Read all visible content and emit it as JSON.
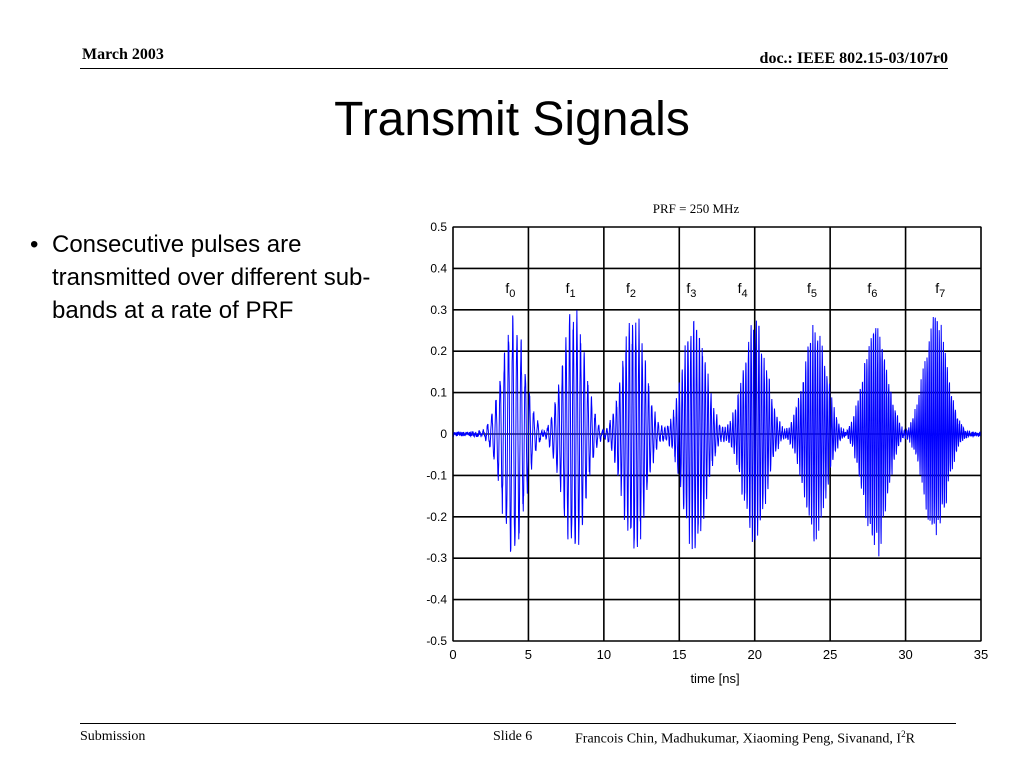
{
  "header": {
    "date": "March 2003",
    "doc_id": "doc.: IEEE 802.15-03/107r0"
  },
  "title": "Transmit Signals",
  "bullets": [
    "Consecutive pulses are transmitted over different sub-bands at a rate of PRF"
  ],
  "footer": {
    "left": "Submission",
    "slide": "Slide 6",
    "authors": "Francois Chin, Madhukumar, Xiaoming Peng, Sivanand, I",
    "authors_sup": "2",
    "authors_tail": "R"
  },
  "colors": {
    "signal": "#0000ff",
    "axes": "#000000",
    "grid": "#000000"
  },
  "chart_data": {
    "type": "line",
    "title": "PRF = 250 MHz",
    "xlabel": "time [ns]",
    "ylabel": "",
    "xlim": [
      0,
      35
    ],
    "ylim": [
      -0.5,
      0.5
    ],
    "xticks": [
      0,
      5,
      10,
      15,
      20,
      25,
      30,
      35
    ],
    "yticks": [
      0.5,
      0.4,
      0.3,
      0.2,
      0.1,
      0,
      -0.1,
      -0.2,
      -0.3,
      -0.4,
      -0.5
    ],
    "grid": true,
    "pulse_labels": [
      {
        "base": "f",
        "sub": "0",
        "x": 3.8
      },
      {
        "base": "f",
        "sub": "1",
        "x": 7.8
      },
      {
        "base": "f",
        "sub": "2",
        "x": 11.8
      },
      {
        "base": "f",
        "sub": "3",
        "x": 15.8
      },
      {
        "base": "f",
        "sub": "4",
        "x": 19.2
      },
      {
        "base": "f",
        "sub": "5",
        "x": 23.8
      },
      {
        "base": "f",
        "sub": "6",
        "x": 27.8
      },
      {
        "base": "f",
        "sub": "7",
        "x": 32.3
      }
    ],
    "pulses": [
      {
        "center": 4.0,
        "peak": 0.3,
        "trough": -0.31
      },
      {
        "center": 8.0,
        "peak": 0.32,
        "trough": -0.31
      },
      {
        "center": 12.0,
        "peak": 0.31,
        "trough": -0.31
      },
      {
        "center": 16.0,
        "peak": 0.31,
        "trough": -0.3
      },
      {
        "center": 20.0,
        "peak": 0.31,
        "trough": -0.28
      },
      {
        "center": 24.0,
        "peak": 0.28,
        "trough": -0.27
      },
      {
        "center": 28.0,
        "peak": 0.3,
        "trough": -0.31
      },
      {
        "center": 32.0,
        "peak": 0.31,
        "trough": -0.27
      }
    ]
  }
}
